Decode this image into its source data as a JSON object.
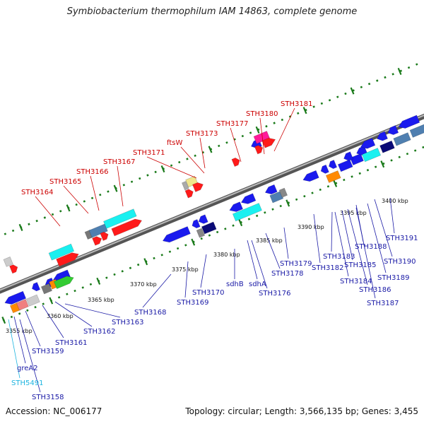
{
  "title": "Symbiobacterium thermophilum IAM 14863, complete genome",
  "footer": {
    "accession": "Accession: NC_006177",
    "stats": "Topology: circular; Length: 3,566,135 bp; Genes: 3,455"
  },
  "colors": {
    "label_forward": "#cc0000",
    "label_reverse": "#1a1aa6",
    "label_rna": "#1fb5e0",
    "gene_forward": "#ff1a1a",
    "gene_reverse": "#1a1aee",
    "gene_cyan": "#1af0f0",
    "gene_pink": "#ff1a9a",
    "gene_orange": "#ff8a00",
    "gene_green": "#33cc33",
    "gene_steel": "#4f7fb0",
    "gene_navy": "#0a0a77",
    "tick_green": "#1a7a1a"
  },
  "scale_labels": [
    "3355 kbp",
    "3360 kbp",
    "3365 kbp",
    "3370 kbp",
    "3375 kbp",
    "3380 kbp",
    "3385 kbp",
    "3390 kbp",
    "3395 kbp",
    "3400 kbp"
  ],
  "forward_labels": [
    "STH3164",
    "STH3165",
    "STH3166",
    "STH3167",
    "STH3171",
    "ftsW",
    "STH3173",
    "STH3177",
    "STH3180",
    "STH3181"
  ],
  "reverse_labels": [
    "STH3158",
    "STH5491",
    "greA2",
    "STH3159",
    "STH3161",
    "STH3162",
    "STH3163",
    "STH3168",
    "STH3169",
    "STH3170",
    "sdhB",
    "sdhA",
    "STH3176",
    "STH3178",
    "STH3179",
    "STH3182",
    "STH3183",
    "STH3184",
    "STH3185",
    "STH3186",
    "STH3187",
    "STH3188",
    "STH3189",
    "STH3190",
    "STH3191"
  ]
}
